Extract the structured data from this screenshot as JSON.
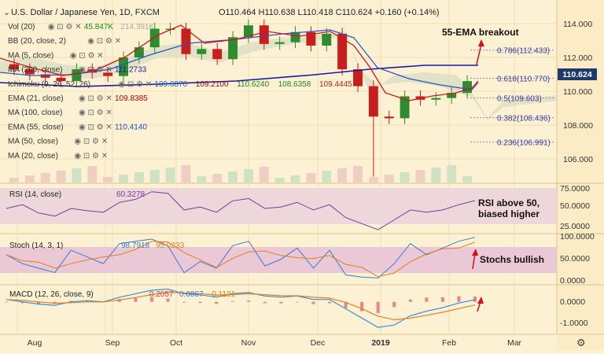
{
  "header": {
    "symbol": "U.S. Dollar / Japanese Yen, 1D, FXCM",
    "ohlc": "O110.464  H110.638  L110.418  C110.624  +0.160 (+0.14%)"
  },
  "indicators": [
    {
      "label": "Vol (20)",
      "values": [
        "45.847K",
        "214.391K"
      ],
      "colors": [
        "#1e8a1e",
        "#aaaaaa"
      ]
    },
    {
      "label": "BB (20, close, 2)",
      "values": [],
      "colors": []
    },
    {
      "label": "MA (5, close)",
      "values": [],
      "colors": []
    },
    {
      "label": "MA (200, close)",
      "values": [
        "111.2733"
      ],
      "colors": [
        "#1a1aa0"
      ]
    },
    {
      "label": "Ichimoku (9, 26, 52, 26)",
      "values": [
        "109.6870",
        "109.2100",
        "110.6240",
        "108.6358",
        "109.4445"
      ],
      "colors": [
        "#2060c0",
        "#a01010",
        "#1e8a1e",
        "#1e8a1e",
        "#c02020"
      ]
    },
    {
      "label": "EMA (21, close)",
      "values": [
        "109.8385"
      ],
      "colors": [
        "#c00000"
      ]
    },
    {
      "label": "MA (100, close)",
      "values": [],
      "colors": []
    },
    {
      "label": "EMA (55, close)",
      "values": [
        "110.4140"
      ],
      "colors": [
        "#2050c0"
      ]
    },
    {
      "label": "MA (50, close)",
      "values": [],
      "colors": []
    },
    {
      "label": "MA (20, close)",
      "values": [],
      "colors": []
    }
  ],
  "price_axis": {
    "ticks": [
      "114.000",
      "112.000",
      "110.000",
      "108.000",
      "106.000"
    ],
    "last": "110.624"
  },
  "fib_levels": [
    {
      "label": "0.786(112.433)",
      "price": 112.433
    },
    {
      "label": "0.618(110.770)",
      "price": 110.77
    },
    {
      "label": "0.5(109.603)",
      "price": 109.603
    },
    {
      "label": "0.382(108.436)",
      "price": 108.436
    },
    {
      "label": "0.236(106.991)",
      "price": 106.991
    }
  ],
  "annotations": {
    "ema_breakout": "55-EMA breakout",
    "rsi_note_1": "RSI above 50,",
    "rsi_note_2": "biased higher",
    "stoch_note": "Stochs bullish"
  },
  "rsi": {
    "label": "RSI (14, close)",
    "value": "60.3278",
    "ticks": [
      "75.0000",
      "50.0000",
      "25.0000"
    ]
  },
  "stoch": {
    "label": "Stoch (14, 3, 1)",
    "k": "98.7918",
    "d": "95.0233",
    "ticks": [
      "100.0000",
      "50.0000",
      "0.0000"
    ]
  },
  "macd": {
    "label": "MACD (12, 26, close, 9)",
    "hist": "0.2057",
    "macd": "0.0867",
    "signal": "-0.1191",
    "ticks": [
      "0.0000",
      "-1.0000"
    ]
  },
  "time_axis": [
    "Aug",
    "Sep",
    "Oct",
    "Nov",
    "Dec",
    "2019",
    "Feb",
    "Mar"
  ],
  "colors": {
    "bull": "#2e8b2e",
    "bear": "#c81e1e",
    "panel_band": "#e8c3d6",
    "ema21": "#d01818",
    "ema55": "#3050c8",
    "ma200": "#1a1aa0",
    "rsi_line": "#7a3a9a",
    "macd_hist": "#e0606e"
  },
  "chart_data": [
    {
      "type": "candlestick",
      "title": "U.S. Dollar / Japanese Yen, 1D, FXCM",
      "y_range": [
        104.6,
        115.4
      ],
      "x": [
        "2018-07-23",
        "2018-07-30",
        "2018-08-06",
        "2018-08-13",
        "2018-08-20",
        "2018-08-27",
        "2018-09-03",
        "2018-09-10",
        "2018-09-17",
        "2018-09-24",
        "2018-10-01",
        "2018-10-08",
        "2018-10-15",
        "2018-10-22",
        "2018-10-29",
        "2018-11-05",
        "2018-11-12",
        "2018-11-19",
        "2018-11-26",
        "2018-12-03",
        "2018-12-10",
        "2018-12-17",
        "2018-12-24",
        "2018-12-31",
        "2019-01-07",
        "2019-01-14",
        "2019-01-21",
        "2019-01-28",
        "2019-02-04",
        "2019-02-11"
      ],
      "close": [
        111.3,
        111.0,
        110.8,
        110.6,
        111.3,
        111.1,
        110.9,
        112.0,
        112.6,
        113.7,
        113.7,
        112.2,
        112.5,
        111.9,
        113.2,
        113.9,
        112.8,
        112.9,
        113.5,
        112.7,
        113.4,
        111.3,
        110.3,
        108.5,
        108.4,
        109.7,
        109.5,
        109.6,
        109.9,
        110.6
      ],
      "ema55_current": 110.414,
      "ema21_current": 109.8385,
      "ma200_current": 111.2733,
      "fibonacci": [
        0.786,
        0.618,
        0.5,
        0.382,
        0.236
      ]
    },
    {
      "type": "line",
      "name": "RSI (14, close)",
      "y_range": [
        20,
        80
      ],
      "values": [
        50,
        55,
        44,
        40,
        50,
        47,
        45,
        58,
        62,
        72,
        70,
        48,
        52,
        45,
        60,
        63,
        50,
        52,
        58,
        48,
        55,
        38,
        30,
        22,
        35,
        48,
        45,
        48,
        55,
        60.3
      ]
    },
    {
      "type": "line",
      "name": "Stoch (14, 3, 1)",
      "y_range": [
        0,
        100
      ],
      "values": [
        60,
        40,
        30,
        20,
        70,
        55,
        40,
        85,
        90,
        95,
        80,
        20,
        45,
        30,
        80,
        90,
        35,
        50,
        75,
        30,
        70,
        15,
        10,
        8,
        40,
        85,
        60,
        75,
        90,
        98.8
      ]
    },
    {
      "type": "line",
      "name": "MACD (12, 26, close, 9)",
      "y_range": [
        -1.3,
        0.6
      ],
      "values": [
        0.1,
        0.0,
        -0.1,
        -0.15,
        0.0,
        0.05,
        0.0,
        0.2,
        0.35,
        0.5,
        0.55,
        0.35,
        0.3,
        0.2,
        0.35,
        0.4,
        0.25,
        0.2,
        0.25,
        0.1,
        0.1,
        -0.3,
        -0.7,
        -1.1,
        -1.0,
        -0.6,
        -0.4,
        -0.25,
        -0.05,
        0.09
      ]
    }
  ]
}
